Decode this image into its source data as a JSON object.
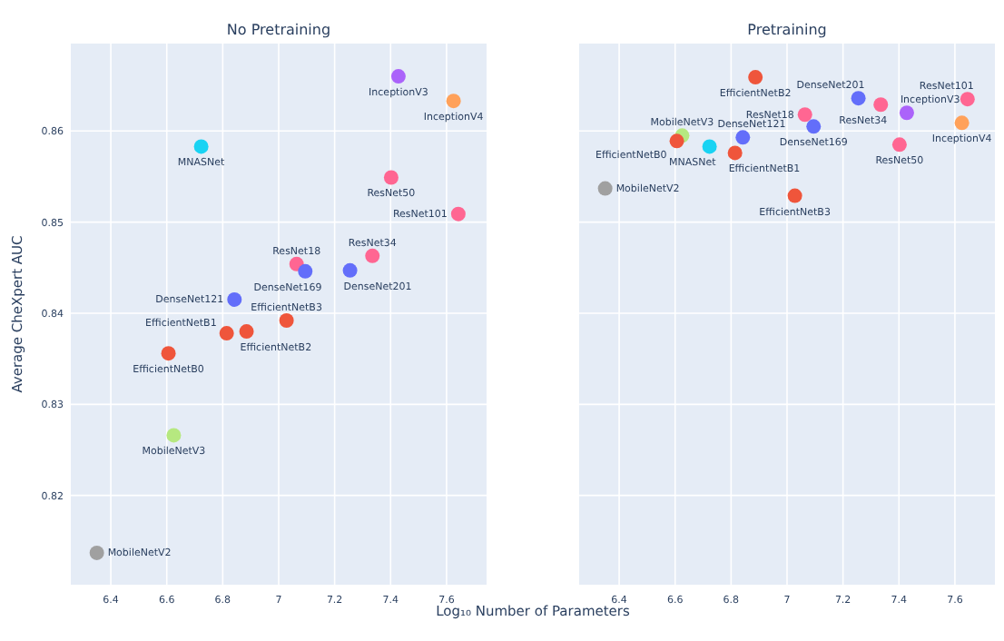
{
  "chart_data": [
    {
      "type": "scatter",
      "title": "No Pretraining",
      "xlabel": "Log₁₀ Number of Parameters",
      "ylabel": "Average CheXpert AUC",
      "xlim": [
        6.257,
        7.743
      ],
      "xticks": [
        6.4,
        6.6,
        6.8,
        7,
        7.2,
        7.4,
        7.6
      ],
      "ylim": [
        0.8102,
        0.8696
      ],
      "yticks": [
        0.82,
        0.83,
        0.84,
        0.85,
        0.86
      ],
      "grid": true,
      "marker": "circle",
      "series": [
        {
          "name": "InceptionV3",
          "color": "#ab63fa",
          "x": [
            7.428
          ],
          "values": [
            0.866
          ]
        },
        {
          "name": "InceptionV4",
          "color": "#ffa15a",
          "x": [
            7.625
          ],
          "values": [
            0.8633
          ]
        },
        {
          "name": "MNASNet",
          "color": "#19d3f3",
          "x": [
            6.723
          ],
          "values": [
            0.8583
          ]
        },
        {
          "name": "ResNet50",
          "color": "#ff6692",
          "x": [
            7.402
          ],
          "values": [
            0.8549
          ]
        },
        {
          "name": "ResNet101",
          "color": "#ff6692",
          "x": [
            7.642
          ],
          "values": [
            0.8509
          ]
        },
        {
          "name": "ResNet34",
          "color": "#ff6692",
          "x": [
            7.335
          ],
          "values": [
            0.8463
          ]
        },
        {
          "name": "ResNet18",
          "color": "#ff6692",
          "x": [
            7.064
          ],
          "values": [
            0.8454
          ]
        },
        {
          "name": "DenseNet169",
          "color": "#636efa",
          "x": [
            7.095
          ],
          "values": [
            0.8446
          ]
        },
        {
          "name": "DenseNet201",
          "color": "#636efa",
          "x": [
            7.255
          ],
          "values": [
            0.8447
          ]
        },
        {
          "name": "DenseNet121",
          "color": "#636efa",
          "x": [
            6.842
          ],
          "values": [
            0.8415
          ]
        },
        {
          "name": "EfficientNetB3",
          "color": "#ef553b",
          "x": [
            7.028
          ],
          "values": [
            0.8392
          ]
        },
        {
          "name": "EfficientNetB1",
          "color": "#ef553b",
          "x": [
            6.814
          ],
          "values": [
            0.8378
          ]
        },
        {
          "name": "EfficientNetB2",
          "color": "#ef553b",
          "x": [
            6.885
          ],
          "values": [
            0.838
          ]
        },
        {
          "name": "EfficientNetB0",
          "color": "#ef553b",
          "x": [
            6.606
          ],
          "values": [
            0.8356
          ]
        },
        {
          "name": "MobileNetV3",
          "color": "#b6e880",
          "x": [
            6.625
          ],
          "values": [
            0.8266
          ]
        },
        {
          "name": "MobileNetV2",
          "color": "#a0a0a0",
          "x": [
            6.35
          ],
          "values": [
            0.8137
          ]
        }
      ]
    },
    {
      "type": "scatter",
      "title": "Pretraining",
      "xlim": [
        6.257,
        7.743
      ],
      "xticks": [
        6.4,
        6.6,
        6.8,
        7,
        7.2,
        7.4,
        7.6
      ],
      "ylim": [
        0.8102,
        0.8696
      ],
      "yticks": [
        0.82,
        0.83,
        0.84,
        0.85,
        0.86
      ],
      "tick_labels": "x",
      "grid": true,
      "marker": "circle",
      "series": [
        {
          "name": "EfficientNetB2",
          "color": "#ef553b",
          "x": [
            6.887
          ],
          "values": [
            0.8659
          ]
        },
        {
          "name": "DenseNet201",
          "color": "#636efa",
          "x": [
            7.255
          ],
          "values": [
            0.8636
          ]
        },
        {
          "name": "ResNet34",
          "color": "#ff6692",
          "x": [
            7.335
          ],
          "values": [
            0.8629
          ]
        },
        {
          "name": "ResNet101",
          "color": "#ff6692",
          "x": [
            7.645
          ],
          "values": [
            0.8635
          ]
        },
        {
          "name": "ResNet18",
          "color": "#ff6692",
          "x": [
            7.064
          ],
          "values": [
            0.8618
          ]
        },
        {
          "name": "InceptionV3",
          "color": "#ab63fa",
          "x": [
            7.428
          ],
          "values": [
            0.862
          ]
        },
        {
          "name": "DenseNet169",
          "color": "#636efa",
          "x": [
            7.095
          ],
          "values": [
            0.8605
          ]
        },
        {
          "name": "InceptionV4",
          "color": "#ffa15a",
          "x": [
            7.625
          ],
          "values": [
            0.8609
          ]
        },
        {
          "name": "MobileNetV3",
          "color": "#b6e880",
          "x": [
            6.625
          ],
          "values": [
            0.8595
          ]
        },
        {
          "name": "DenseNet121",
          "color": "#636efa",
          "x": [
            6.842
          ],
          "values": [
            0.8593
          ]
        },
        {
          "name": "EfficientNetB0",
          "color": "#ef553b",
          "x": [
            6.606
          ],
          "values": [
            0.8589
          ]
        },
        {
          "name": "MNASNet",
          "color": "#19d3f3",
          "x": [
            6.723
          ],
          "values": [
            0.8583
          ]
        },
        {
          "name": "EfficientNetB1",
          "color": "#ef553b",
          "x": [
            6.814
          ],
          "values": [
            0.8576
          ]
        },
        {
          "name": "ResNet50",
          "color": "#ff6692",
          "x": [
            7.402
          ],
          "values": [
            0.8585
          ]
        },
        {
          "name": "MobileNetV2",
          "color": "#a0a0a0",
          "x": [
            6.35
          ],
          "values": [
            0.8537
          ]
        },
        {
          "name": "EfficientNetB3",
          "color": "#ef553b",
          "x": [
            7.028
          ],
          "values": [
            0.8529
          ]
        }
      ]
    }
  ]
}
